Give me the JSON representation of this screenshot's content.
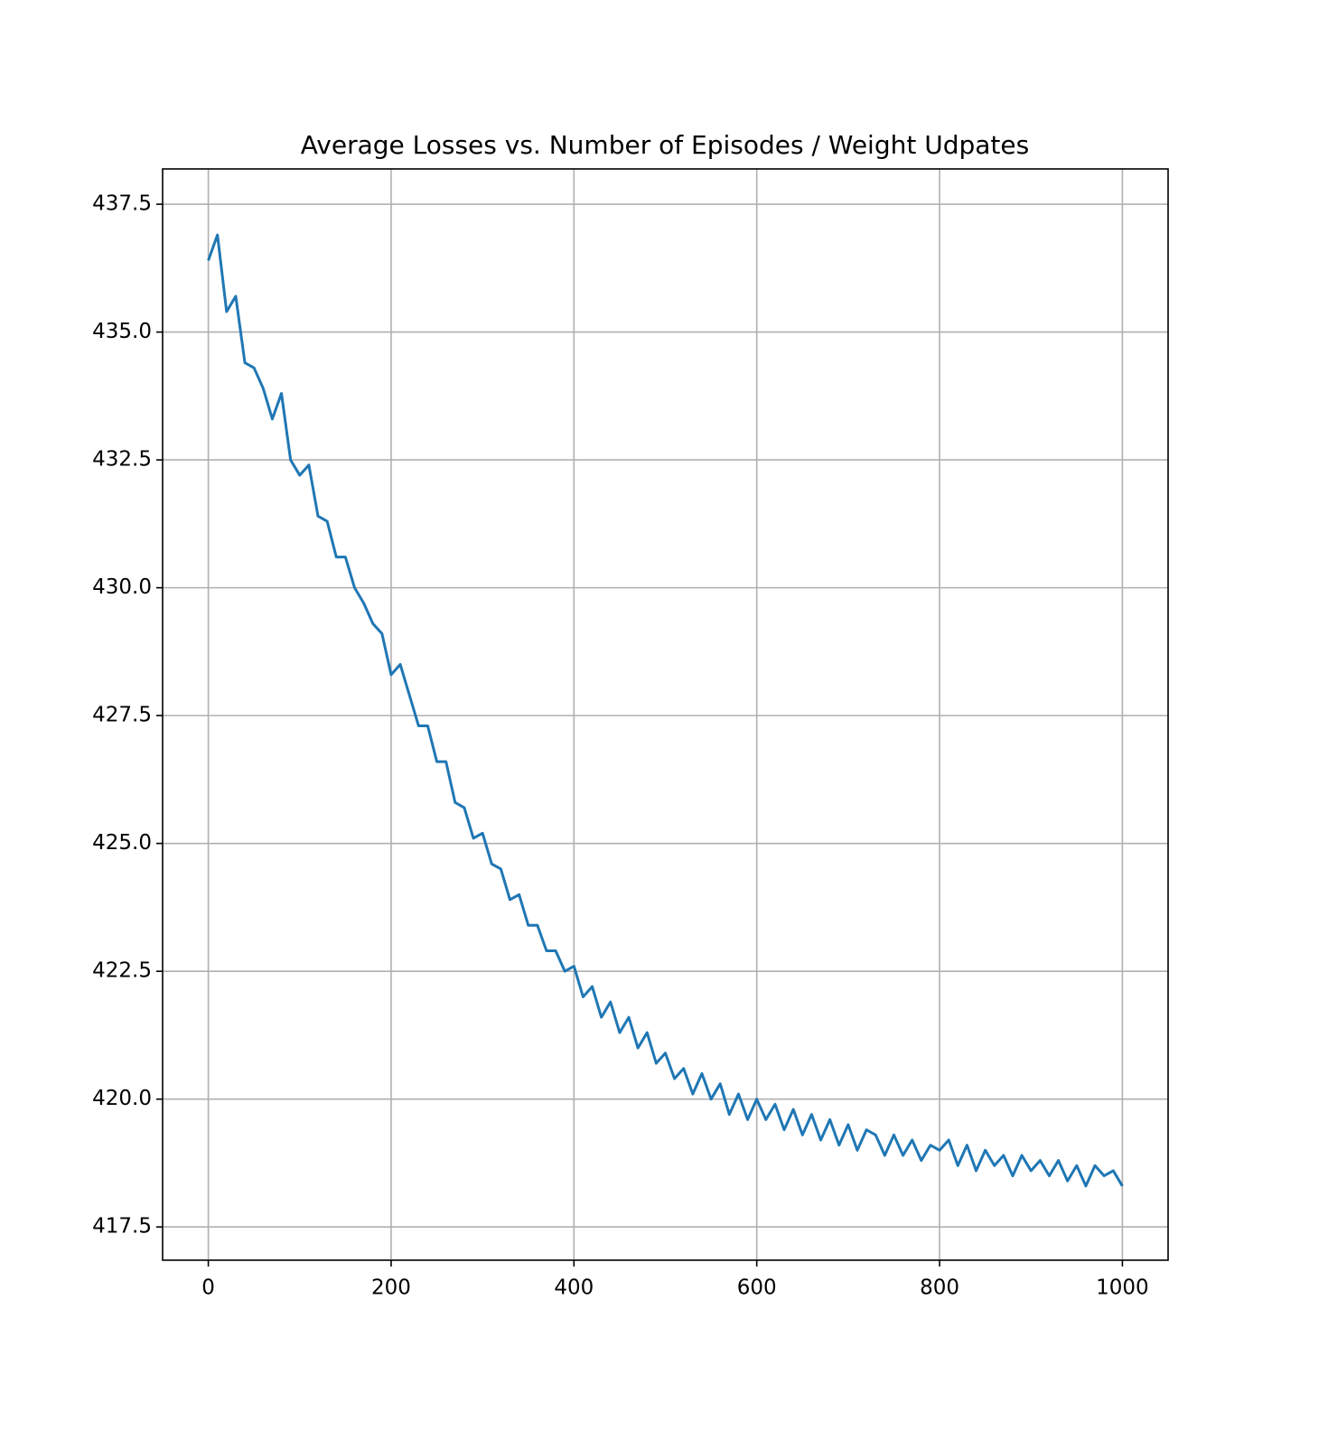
{
  "chart_data": {
    "type": "line",
    "title": "Average Losses vs. Number of Episodes / Weight Udpates",
    "x": [
      0,
      10,
      20,
      30,
      40,
      50,
      60,
      70,
      80,
      90,
      100,
      110,
      120,
      130,
      140,
      150,
      160,
      170,
      180,
      190,
      200,
      210,
      220,
      230,
      240,
      250,
      260,
      270,
      280,
      290,
      300,
      310,
      320,
      330,
      340,
      350,
      360,
      370,
      380,
      390,
      400,
      410,
      420,
      430,
      440,
      450,
      460,
      470,
      480,
      490,
      500,
      510,
      520,
      530,
      540,
      550,
      560,
      570,
      580,
      590,
      600,
      610,
      620,
      630,
      640,
      650,
      660,
      670,
      680,
      690,
      700,
      710,
      720,
      730,
      740,
      750,
      760,
      770,
      780,
      790,
      800,
      810,
      820,
      830,
      840,
      850,
      860,
      870,
      880,
      890,
      900,
      910,
      920,
      930,
      940,
      950,
      960,
      970,
      980,
      990,
      1000
    ],
    "values": [
      436.4,
      436.9,
      435.4,
      435.7,
      434.4,
      434.3,
      433.9,
      433.3,
      433.8,
      432.5,
      432.2,
      432.4,
      431.4,
      431.3,
      430.6,
      430.6,
      430.0,
      429.7,
      429.3,
      429.1,
      428.3,
      428.5,
      427.9,
      427.3,
      427.3,
      426.6,
      426.6,
      425.8,
      425.7,
      425.1,
      425.2,
      424.6,
      424.5,
      423.9,
      424.0,
      423.4,
      423.4,
      422.9,
      422.9,
      422.5,
      422.6,
      422.0,
      422.2,
      421.6,
      421.9,
      421.3,
      421.6,
      421.0,
      421.3,
      420.7,
      420.9,
      420.4,
      420.6,
      420.1,
      420.5,
      420.0,
      420.3,
      419.7,
      420.1,
      419.6,
      420.0,
      419.6,
      419.9,
      419.4,
      419.8,
      419.3,
      419.7,
      419.2,
      419.6,
      419.1,
      419.5,
      419.0,
      419.4,
      419.3,
      418.9,
      419.3,
      418.9,
      419.2,
      418.8,
      419.1,
      419.0,
      419.2,
      418.7,
      419.1,
      418.6,
      419.0,
      418.7,
      418.9,
      418.5,
      418.9,
      418.6,
      418.8,
      418.5,
      418.8,
      418.4,
      418.7,
      418.3,
      418.7,
      418.5,
      418.6,
      418.3
    ],
    "color": "#1f77b4",
    "xlim": [
      -50,
      1050
    ],
    "xticks": [
      0,
      200,
      400,
      600,
      800,
      1000
    ],
    "ylim": [
      416.85,
      438.19
    ],
    "yticks": [
      417.5,
      {
        "value": 420,
        "label": "420.0"
      },
      422.5,
      {
        "value": 425,
        "label": "425.0"
      },
      427.5,
      {
        "value": 430,
        "label": "430.0"
      },
      432.5,
      {
        "value": 435,
        "label": "435.0"
      },
      437.5
    ],
    "grid": true
  }
}
